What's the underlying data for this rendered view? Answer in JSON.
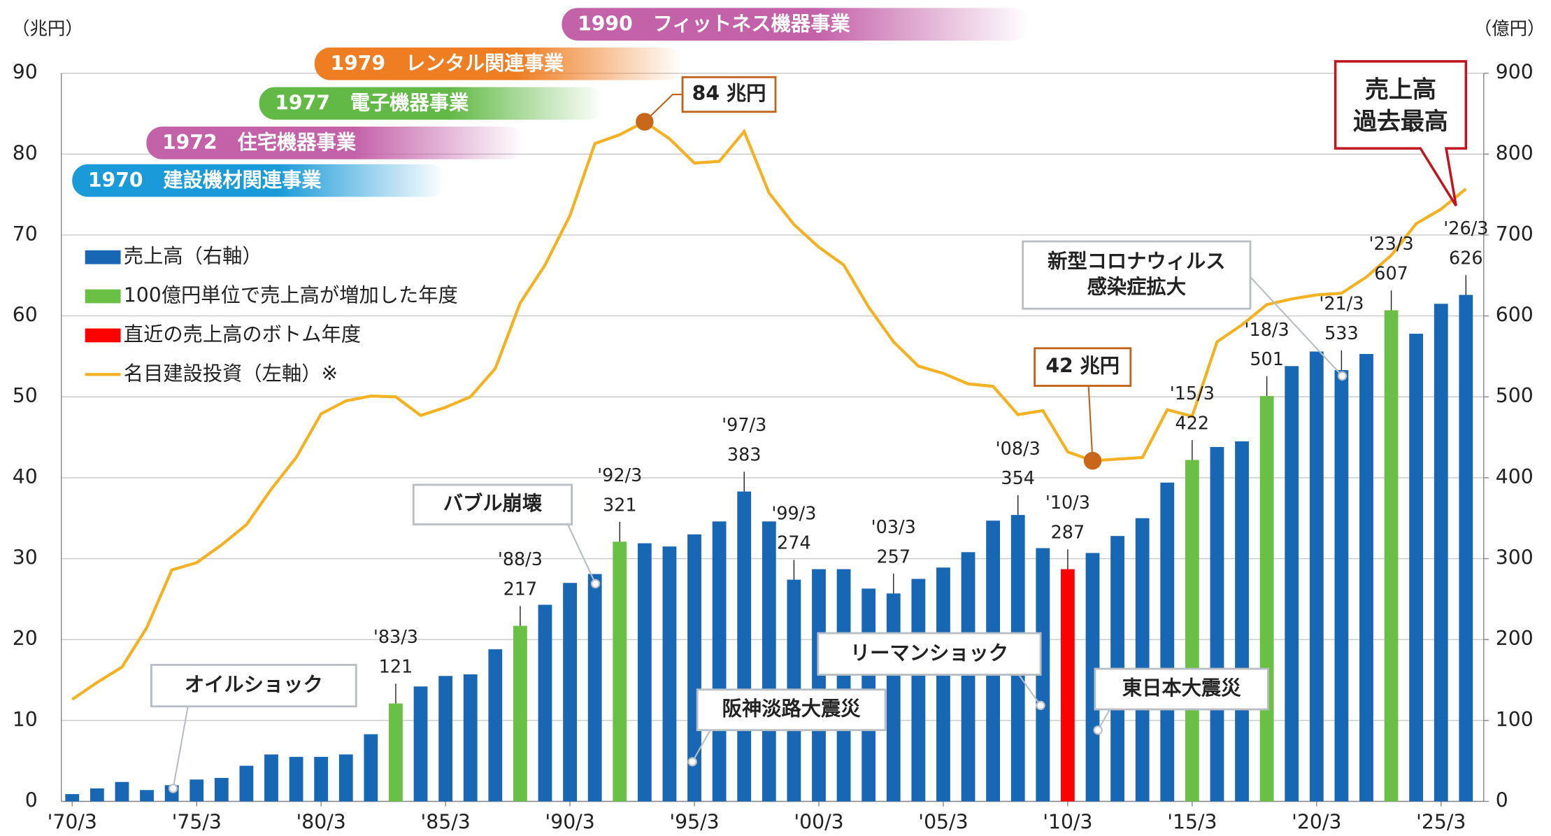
{
  "chart_data": {
    "type": "bar_line",
    "y_unit": "（兆円）",
    "y2_unit": "（億円）",
    "categories": [
      "'70/3",
      null,
      null,
      null,
      null,
      "'75/3",
      null,
      null,
      null,
      null,
      "'80/3",
      null,
      null,
      "'83/3",
      null,
      "'85/3",
      null,
      null,
      "'88/3",
      null,
      "'90/3",
      null,
      "'92/3",
      null,
      null,
      "'95/3",
      null,
      "'97/3",
      null,
      "'99/3",
      "'00/3",
      null,
      null,
      "'03/3",
      null,
      "'05/3",
      null,
      null,
      "'08/3",
      null,
      "'10/3",
      null,
      null,
      null,
      null,
      "'15/3",
      null,
      null,
      "'18/3",
      null,
      "'20/3",
      "'21/3",
      null,
      "'23/3",
      null,
      "'25/3",
      "'26/3"
    ],
    "xtick_categories": [
      "'70/3",
      "'75/3",
      "'80/3",
      "'85/3",
      "'90/3",
      "'95/3",
      "'00/3",
      "'05/3",
      "'10/3",
      "'15/3",
      "'20/3",
      "'25/3"
    ],
    "labeled_categories": [
      "'83/3",
      "'88/3",
      "'92/3",
      "'97/3",
      "'99/3",
      "'03/3",
      "'08/3",
      "'10/3",
      "'15/3",
      "'18/3",
      "'21/3",
      "'23/3",
      "'26/3"
    ],
    "series": [
      {
        "name": "売上高（右軸）",
        "color": "#1767b4",
        "axis": "y2",
        "values": [
          9,
          16,
          24,
          14,
          20,
          27,
          29,
          44,
          58,
          55,
          55,
          58,
          83,
          121,
          142,
          155,
          157,
          188,
          217,
          243,
          270,
          281,
          321,
          319,
          315,
          330,
          346,
          383,
          346,
          274,
          287,
          287,
          263,
          257,
          275,
          289,
          308,
          347,
          354,
          313,
          287,
          307,
          328,
          350,
          394,
          422,
          438,
          445,
          501,
          538,
          556,
          533,
          553,
          607,
          578,
          615,
          626
        ]
      },
      {
        "name": "名目建設投資（左軸）※",
        "color": "#f4b223",
        "axis": "y",
        "values": [
          12.6,
          14.7,
          16.6,
          21.5,
          28.6,
          29.5,
          31.7,
          34.2,
          38.6,
          42.5,
          47.9,
          49.5,
          50.1,
          50.0,
          47.7,
          48.7,
          50.0,
          53.5,
          61.6,
          66.3,
          72.4,
          81.3,
          82.4,
          84.0,
          81.9,
          78.9,
          79.1,
          82.8,
          75.2,
          71.3,
          68.5,
          66.3,
          61.1,
          56.8,
          53.8,
          52.9,
          51.6,
          51.3,
          47.8,
          48.3,
          43.2,
          42.1,
          42.3,
          42.5,
          48.4,
          47.6,
          56.8,
          58.9,
          61.4,
          62.1,
          62.6,
          62.8,
          64.8,
          67.5,
          71.4,
          73.2,
          75.7
        ],
        "value_labels": [
          null,
          null,
          null,
          null,
          null,
          null,
          null,
          null,
          null,
          null,
          null,
          null,
          null,
          null,
          null,
          null,
          null,
          null,
          null,
          null,
          null,
          null,
          null,
          "84 兆円",
          null,
          null,
          null,
          null,
          null,
          null,
          null,
          null,
          null,
          null,
          null,
          null,
          null,
          null,
          null,
          null,
          null,
          "42 兆円",
          null,
          null,
          null,
          null,
          null,
          null,
          null,
          null,
          null,
          null,
          null,
          null,
          null,
          null,
          null
        ]
      }
    ],
    "highlights": [
      {
        "name": "100億円単位で売上高が増加した年度",
        "color": "#6abf45",
        "categories": [
          "'83/3",
          "'88/3",
          "'92/3",
          "'15/3",
          "'18/3",
          "'23/3"
        ]
      },
      {
        "name": "直近の売上高のボトム年度",
        "color": "#ff0000",
        "categories": [
          "'10/3"
        ]
      }
    ],
    "ylim": [
      0,
      90
    ],
    "yticks": [
      0,
      10,
      20,
      30,
      40,
      50,
      60,
      70,
      80,
      90
    ],
    "y2lim": [
      0,
      900
    ],
    "y2ticks": [
      0,
      100,
      200,
      300,
      400,
      500,
      600,
      700,
      800,
      900
    ],
    "grid": true,
    "timeline": [
      {
        "year": "1990",
        "label": "フィットネス機器事業",
        "color": "#c462a9"
      },
      {
        "year": "1979",
        "label": "レンタル関連事業",
        "color": "#ef7d22"
      },
      {
        "year": "1977",
        "label": "電子機器事業",
        "color": "#62b946"
      },
      {
        "year": "1972",
        "label": "住宅機器事業",
        "color": "#c462a9"
      },
      {
        "year": "1970",
        "label": "建設機材関連事業",
        "color": "#1a9ad8"
      }
    ],
    "events": [
      {
        "lines": [
          "オイルショック"
        ]
      },
      {
        "lines": [
          "バブル崩壊"
        ]
      },
      {
        "lines": [
          "阪神淡路大震災"
        ]
      },
      {
        "lines": [
          "リーマンショック"
        ]
      },
      {
        "lines": [
          "東日本大震災"
        ]
      },
      {
        "lines": [
          "新型コロナウィルス",
          "感染症拡大"
        ]
      }
    ],
    "record_note": [
      "売上高",
      "過去最高"
    ]
  }
}
